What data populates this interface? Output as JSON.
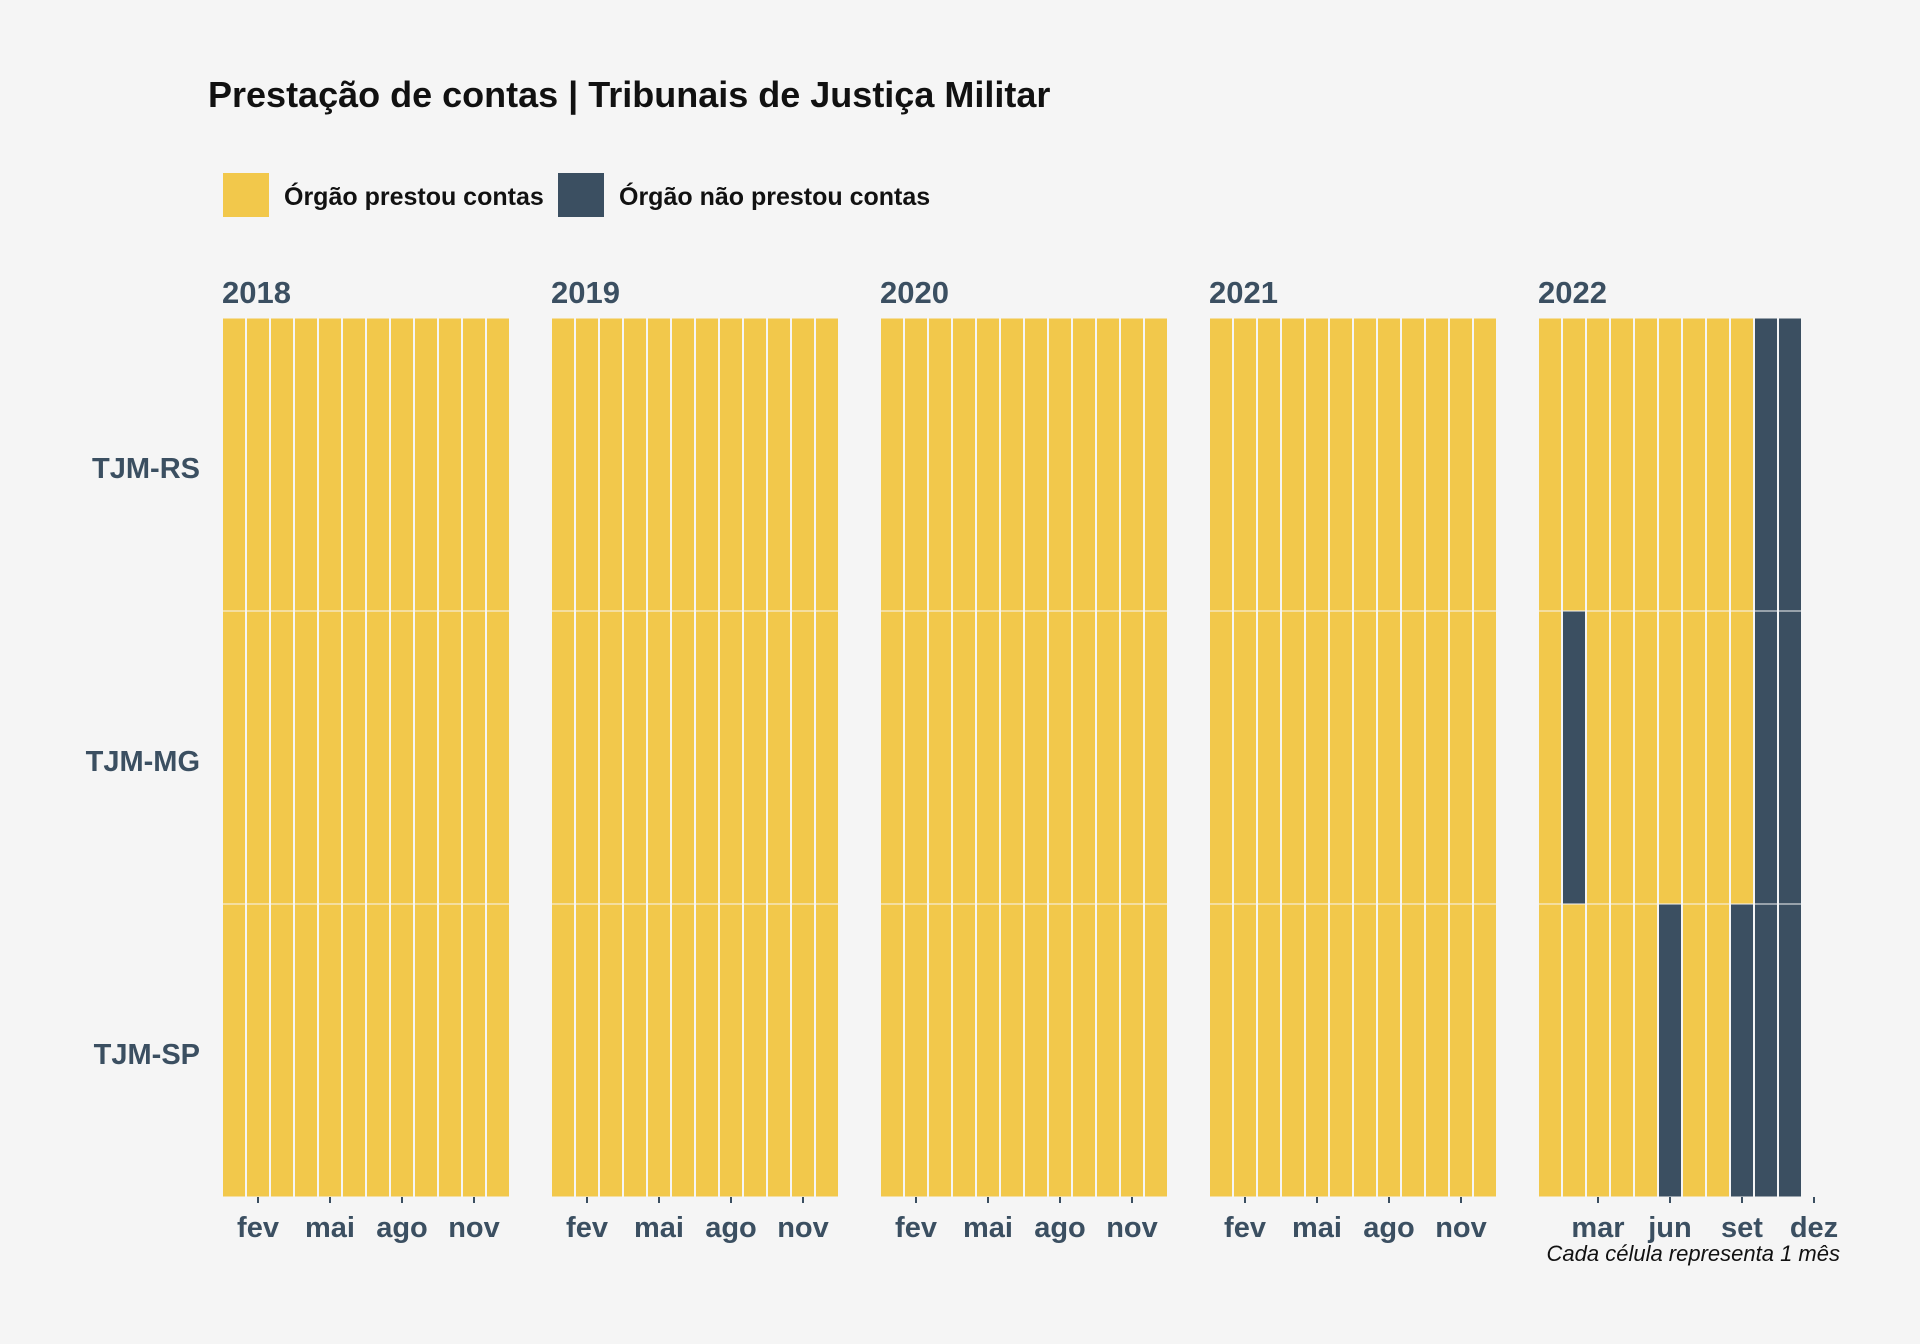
{
  "chart_data": {
    "type": "heatmap",
    "title": "Prestação de contas | Tribunais de Justiça Militar",
    "caption": "Cada célula representa 1 mês",
    "colors": {
      "prestou": "#f2c84b",
      "nao_prestou": "#3b4f61",
      "background": "#f5f5f5",
      "text": "#3b4f61"
    },
    "legend": [
      {
        "key": "prestou",
        "label": "Órgão prestou contas"
      },
      {
        "key": "nao_prestou",
        "label": "Órgão não prestou contas"
      }
    ],
    "rows": [
      "TJM-RS",
      "TJM-MG",
      "TJM-SP"
    ],
    "panels": [
      {
        "year": "2018",
        "months": [
          1,
          2,
          3,
          4,
          5,
          6,
          7,
          8,
          9,
          10,
          11,
          12
        ],
        "ticks": [
          {
            "month": 2,
            "label": "fev"
          },
          {
            "month": 5,
            "label": "mai"
          },
          {
            "month": 8,
            "label": "ago"
          },
          {
            "month": 11,
            "label": "nov"
          }
        ],
        "status": {
          "TJM-RS": [
            1,
            1,
            1,
            1,
            1,
            1,
            1,
            1,
            1,
            1,
            1,
            1
          ],
          "TJM-MG": [
            1,
            1,
            1,
            1,
            1,
            1,
            1,
            1,
            1,
            1,
            1,
            1
          ],
          "TJM-SP": [
            1,
            1,
            1,
            1,
            1,
            1,
            1,
            1,
            1,
            1,
            1,
            1
          ]
        }
      },
      {
        "year": "2019",
        "months": [
          1,
          2,
          3,
          4,
          5,
          6,
          7,
          8,
          9,
          10,
          11,
          12
        ],
        "ticks": [
          {
            "month": 2,
            "label": "fev"
          },
          {
            "month": 5,
            "label": "mai"
          },
          {
            "month": 8,
            "label": "ago"
          },
          {
            "month": 11,
            "label": "nov"
          }
        ],
        "status": {
          "TJM-RS": [
            1,
            1,
            1,
            1,
            1,
            1,
            1,
            1,
            1,
            1,
            1,
            1
          ],
          "TJM-MG": [
            1,
            1,
            1,
            1,
            1,
            1,
            1,
            1,
            1,
            1,
            1,
            1
          ],
          "TJM-SP": [
            1,
            1,
            1,
            1,
            1,
            1,
            1,
            1,
            1,
            1,
            1,
            1
          ]
        }
      },
      {
        "year": "2020",
        "months": [
          1,
          2,
          3,
          4,
          5,
          6,
          7,
          8,
          9,
          10,
          11,
          12
        ],
        "ticks": [
          {
            "month": 2,
            "label": "fev"
          },
          {
            "month": 5,
            "label": "mai"
          },
          {
            "month": 8,
            "label": "ago"
          },
          {
            "month": 11,
            "label": "nov"
          }
        ],
        "status": {
          "TJM-RS": [
            1,
            1,
            1,
            1,
            1,
            1,
            1,
            1,
            1,
            1,
            1,
            1
          ],
          "TJM-MG": [
            1,
            1,
            1,
            1,
            1,
            1,
            1,
            1,
            1,
            1,
            1,
            1
          ],
          "TJM-SP": [
            1,
            1,
            1,
            1,
            1,
            1,
            1,
            1,
            1,
            1,
            1,
            1
          ]
        }
      },
      {
        "year": "2021",
        "months": [
          1,
          2,
          3,
          4,
          5,
          6,
          7,
          8,
          9,
          10,
          11,
          12
        ],
        "ticks": [
          {
            "month": 2,
            "label": "fev"
          },
          {
            "month": 5,
            "label": "mai"
          },
          {
            "month": 8,
            "label": "ago"
          },
          {
            "month": 11,
            "label": "nov"
          }
        ],
        "status": {
          "TJM-RS": [
            1,
            1,
            1,
            1,
            1,
            1,
            1,
            1,
            1,
            1,
            1,
            1
          ],
          "TJM-MG": [
            1,
            1,
            1,
            1,
            1,
            1,
            1,
            1,
            1,
            1,
            1,
            1
          ],
          "TJM-SP": [
            1,
            1,
            1,
            1,
            1,
            1,
            1,
            1,
            1,
            1,
            1,
            1
          ]
        }
      },
      {
        "year": "2022",
        "months": [
          1,
          2,
          3,
          4,
          5,
          6,
          7,
          8,
          9,
          10,
          11
        ],
        "ticks": [
          {
            "month": 3,
            "label": "mar"
          },
          {
            "month": 6,
            "label": "jun"
          },
          {
            "month": 9,
            "label": "set"
          },
          {
            "month": 12,
            "label": "dez"
          }
        ],
        "status": {
          "TJM-RS": [
            1,
            1,
            1,
            1,
            1,
            1,
            1,
            1,
            1,
            0,
            0
          ],
          "TJM-MG": [
            1,
            0,
            1,
            1,
            1,
            1,
            1,
            1,
            1,
            0,
            0
          ],
          "TJM-SP": [
            1,
            1,
            1,
            1,
            1,
            0,
            1,
            1,
            0,
            0,
            0
          ]
        }
      }
    ]
  }
}
